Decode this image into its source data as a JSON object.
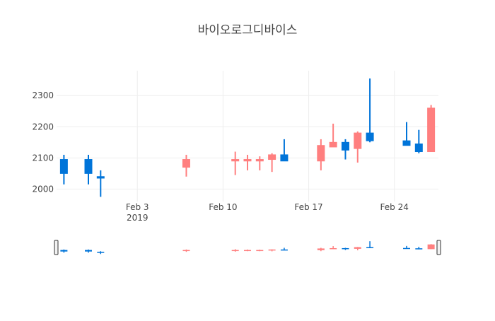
{
  "chart_data": {
    "type": "candlestick",
    "title": "바이오로그디바이스",
    "ylim": [
      1960,
      2380
    ],
    "yticks": [
      2000,
      2100,
      2200,
      2300
    ],
    "xticks": [
      {
        "date": "2019-02-03",
        "label": "Feb 3",
        "sub": "2019"
      },
      {
        "date": "2019-02-10",
        "label": "Feb 10",
        "sub": ""
      },
      {
        "date": "2019-02-17",
        "label": "Feb 17",
        "sub": ""
      },
      {
        "date": "2019-02-24",
        "label": "Feb 24",
        "sub": ""
      }
    ],
    "xrange": [
      "2019-01-28",
      "2019-02-26"
    ],
    "grid": true,
    "rangeslider": true,
    "colors": {
      "increasing": "#ff7f7f",
      "decreasing": "#0074d9",
      "grid": "#eeeeee",
      "text": "#444444"
    },
    "candles": [
      {
        "date": "2019-01-28",
        "open": 2095,
        "high": 2110,
        "low": 2015,
        "close": 2050
      },
      {
        "date": "2019-01-30",
        "open": 2095,
        "high": 2110,
        "low": 2015,
        "close": 2050
      },
      {
        "date": "2019-01-31",
        "open": 2040,
        "high": 2060,
        "low": 1975,
        "close": 2035
      },
      {
        "date": "2019-02-07",
        "open": 2070,
        "high": 2110,
        "low": 2040,
        "close": 2095
      },
      {
        "date": "2019-02-11",
        "open": 2090,
        "high": 2120,
        "low": 2045,
        "close": 2095
      },
      {
        "date": "2019-02-12",
        "open": 2090,
        "high": 2110,
        "low": 2060,
        "close": 2095
      },
      {
        "date": "2019-02-13",
        "open": 2090,
        "high": 2105,
        "low": 2060,
        "close": 2095
      },
      {
        "date": "2019-02-14",
        "open": 2095,
        "high": 2115,
        "low": 2055,
        "close": 2110
      },
      {
        "date": "2019-02-15",
        "open": 2110,
        "high": 2160,
        "low": 2090,
        "close": 2090
      },
      {
        "date": "2019-02-18",
        "open": 2090,
        "high": 2160,
        "low": 2060,
        "close": 2140
      },
      {
        "date": "2019-02-19",
        "open": 2135,
        "high": 2210,
        "low": 2135,
        "close": 2150
      },
      {
        "date": "2019-02-20",
        "open": 2150,
        "high": 2160,
        "low": 2095,
        "close": 2125
      },
      {
        "date": "2019-02-21",
        "open": 2130,
        "high": 2185,
        "low": 2085,
        "close": 2180
      },
      {
        "date": "2019-02-22",
        "open": 2180,
        "high": 2355,
        "low": 2150,
        "close": 2155
      },
      {
        "date": "2019-02-25",
        "open": 2155,
        "high": 2215,
        "low": 2140,
        "close": 2140
      },
      {
        "date": "2019-02-26",
        "open": 2145,
        "high": 2190,
        "low": 2115,
        "close": 2120
      },
      {
        "date": "2019-02-27",
        "open": 2120,
        "high": 2270,
        "low": 2120,
        "close": 2260
      }
    ]
  }
}
